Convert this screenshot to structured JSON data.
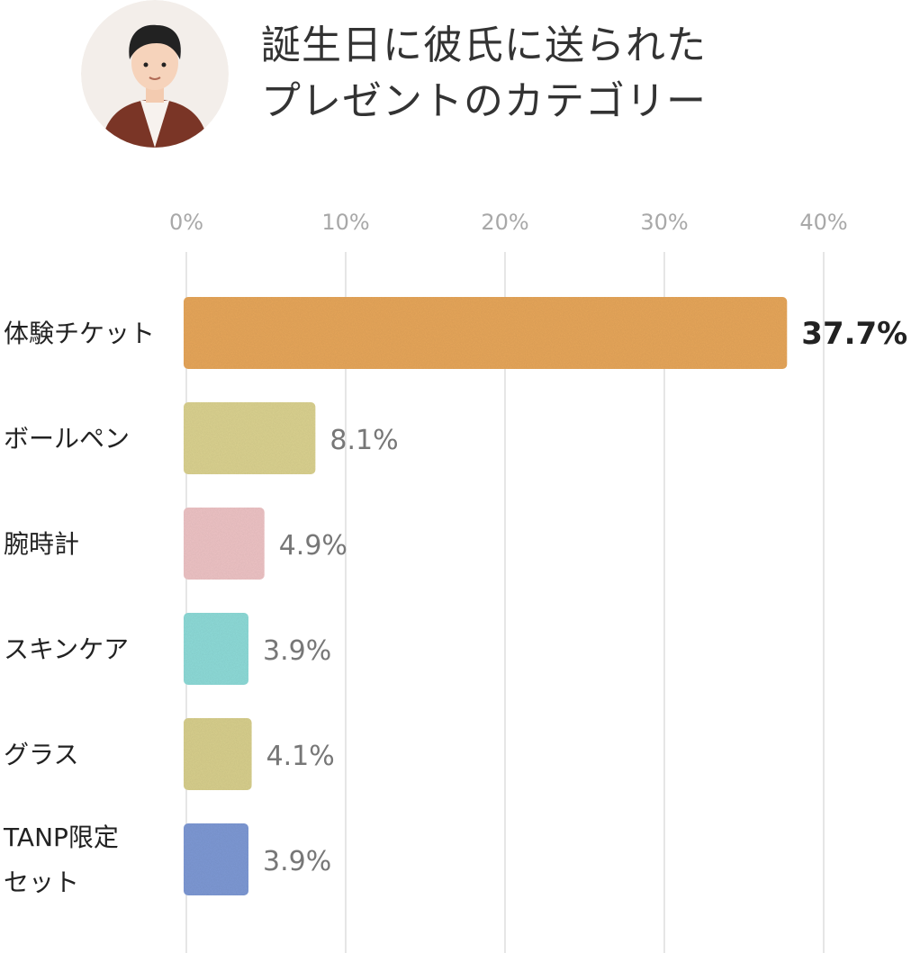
{
  "title": {
    "line1": "誕生日に彼氏に送られた",
    "line2": "プレゼントのカテゴリー"
  },
  "avatar": {
    "icon": "man-avatar-icon"
  },
  "colors": {
    "grid": "#e6e6e6",
    "tick": "#a8a8a8",
    "label": "#222222",
    "value": "#777777",
    "avatar_bg": "#f3eeea"
  },
  "chart_data": {
    "type": "bar",
    "orientation": "horizontal",
    "title": "誕生日に彼氏に送られたプレゼントのカテゴリー",
    "xlim": [
      0,
      40
    ],
    "xticks": [
      0,
      10,
      20,
      30,
      40
    ],
    "xtick_labels": [
      "0%",
      "10%",
      "20%",
      "30%",
      "40%"
    ],
    "grid": true,
    "categories": [
      {
        "lines": [
          "体験チケット"
        ]
      },
      {
        "lines": [
          "ボールペン"
        ]
      },
      {
        "lines": [
          "腕時計"
        ]
      },
      {
        "lines": [
          "スキンケア"
        ]
      },
      {
        "lines": [
          "グラス"
        ]
      },
      {
        "lines": [
          "TANP限定",
          "セット"
        ]
      }
    ],
    "values": [
      37.7,
      8.1,
      4.9,
      3.9,
      4.1,
      3.9
    ],
    "value_labels": [
      "37.7%",
      "8.1%",
      "4.9%",
      "3.9%",
      "4.1%",
      "3.9%"
    ],
    "bar_colors": [
      "#e8a75b",
      "#dcd391",
      "#efc4c6",
      "#8fdcd9",
      "#d9d08e",
      "#7f9ad6"
    ],
    "highlight_index": 0
  }
}
